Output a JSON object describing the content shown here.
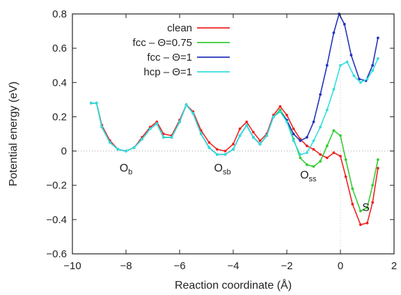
{
  "chart_data": {
    "type": "line",
    "title": "",
    "xlabel": "Reaction coordinate (Å)",
    "ylabel": "Potential energy (eV)",
    "xlim": [
      -10,
      2
    ],
    "ylim": [
      -0.6,
      0.8
    ],
    "xticks": [
      "−10",
      "−8",
      "−6",
      "−4",
      "−2",
      "0",
      "2"
    ],
    "yticks": [
      "−0.6",
      "−0.4",
      "−0.2",
      "0",
      "0.2",
      "0.4",
      "0.6",
      "0.8"
    ],
    "grid": false,
    "legend_position": "top-right",
    "series": [
      {
        "name": "clean",
        "color": "#ee2222",
        "points": [
          [
            -9.3,
            0.28
          ],
          [
            -9.1,
            0.28
          ],
          [
            -8.9,
            0.15
          ],
          [
            -8.6,
            0.06
          ],
          [
            -8.3,
            0.01
          ],
          [
            -8.0,
            0.0
          ],
          [
            -7.7,
            0.02
          ],
          [
            -7.4,
            0.08
          ],
          [
            -7.1,
            0.14
          ],
          [
            -6.85,
            0.17
          ],
          [
            -6.6,
            0.1
          ],
          [
            -6.3,
            0.09
          ],
          [
            -6.0,
            0.18
          ],
          [
            -5.75,
            0.27
          ],
          [
            -5.5,
            0.23
          ],
          [
            -5.2,
            0.12
          ],
          [
            -4.9,
            0.05
          ],
          [
            -4.6,
            0.01
          ],
          [
            -4.3,
            0.0
          ],
          [
            -4.0,
            0.04
          ],
          [
            -3.75,
            0.13
          ],
          [
            -3.5,
            0.17
          ],
          [
            -3.25,
            0.11
          ],
          [
            -3.0,
            0.06
          ],
          [
            -2.75,
            0.1
          ],
          [
            -2.5,
            0.21
          ],
          [
            -2.25,
            0.26
          ],
          [
            -2.0,
            0.21
          ],
          [
            -1.75,
            0.13
          ],
          [
            -1.5,
            0.07
          ],
          [
            -1.25,
            0.03
          ],
          [
            -1.0,
            0.01
          ],
          [
            -0.75,
            -0.02
          ],
          [
            -0.5,
            -0.04
          ],
          [
            -0.25,
            -0.01
          ],
          [
            0.0,
            -0.03
          ],
          [
            0.2,
            -0.15
          ],
          [
            0.45,
            -0.31
          ],
          [
            0.75,
            -0.43
          ],
          [
            1.0,
            -0.42
          ],
          [
            1.2,
            -0.3
          ],
          [
            1.4,
            -0.1
          ]
        ]
      },
      {
        "name": "fcc – Θ=0.75",
        "color": "#33cc33",
        "points": [
          [
            -9.3,
            0.28
          ],
          [
            -9.1,
            0.28
          ],
          [
            -8.9,
            0.14
          ],
          [
            -8.6,
            0.05
          ],
          [
            -8.3,
            0.01
          ],
          [
            -8.0,
            0.0
          ],
          [
            -7.7,
            0.02
          ],
          [
            -7.4,
            0.07
          ],
          [
            -7.1,
            0.13
          ],
          [
            -6.85,
            0.16
          ],
          [
            -6.6,
            0.08
          ],
          [
            -6.3,
            0.08
          ],
          [
            -6.0,
            0.17
          ],
          [
            -5.75,
            0.27
          ],
          [
            -5.5,
            0.22
          ],
          [
            -5.2,
            0.1
          ],
          [
            -4.9,
            0.02
          ],
          [
            -4.6,
            -0.02
          ],
          [
            -4.3,
            -0.02
          ],
          [
            -4.0,
            0.01
          ],
          [
            -3.75,
            0.09
          ],
          [
            -3.5,
            0.15
          ],
          [
            -3.25,
            0.08
          ],
          [
            -3.0,
            0.04
          ],
          [
            -2.75,
            0.09
          ],
          [
            -2.5,
            0.2
          ],
          [
            -2.25,
            0.24
          ],
          [
            -2.0,
            0.18
          ],
          [
            -1.75,
            0.07
          ],
          [
            -1.5,
            -0.04
          ],
          [
            -1.25,
            -0.08
          ],
          [
            -1.0,
            -0.09
          ],
          [
            -0.75,
            -0.06
          ],
          [
            -0.5,
            0.03
          ],
          [
            -0.25,
            0.12
          ],
          [
            0.0,
            0.09
          ],
          [
            0.2,
            -0.05
          ],
          [
            0.45,
            -0.22
          ],
          [
            0.75,
            -0.35
          ],
          [
            1.0,
            -0.33
          ],
          [
            1.2,
            -0.2
          ],
          [
            1.4,
            -0.05
          ]
        ]
      },
      {
        "name": "fcc – Θ=1",
        "color": "#2233bb",
        "points": [
          [
            -9.3,
            0.28
          ],
          [
            -9.1,
            0.28
          ],
          [
            -8.9,
            0.14
          ],
          [
            -8.6,
            0.05
          ],
          [
            -8.3,
            0.01
          ],
          [
            -8.0,
            0.0
          ],
          [
            -7.7,
            0.02
          ],
          [
            -7.4,
            0.07
          ],
          [
            -7.1,
            0.13
          ],
          [
            -6.85,
            0.16
          ],
          [
            -6.6,
            0.08
          ],
          [
            -6.3,
            0.08
          ],
          [
            -6.0,
            0.17
          ],
          [
            -5.75,
            0.27
          ],
          [
            -5.5,
            0.22
          ],
          [
            -5.2,
            0.1
          ],
          [
            -4.9,
            0.02
          ],
          [
            -4.6,
            -0.02
          ],
          [
            -4.3,
            -0.02
          ],
          [
            -4.0,
            0.01
          ],
          [
            -3.75,
            0.09
          ],
          [
            -3.5,
            0.15
          ],
          [
            -3.25,
            0.08
          ],
          [
            -3.0,
            0.04
          ],
          [
            -2.75,
            0.09
          ],
          [
            -2.5,
            0.2
          ],
          [
            -2.25,
            0.23
          ],
          [
            -2.0,
            0.18
          ],
          [
            -1.75,
            0.1
          ],
          [
            -1.5,
            0.06
          ],
          [
            -1.25,
            0.08
          ],
          [
            -1.0,
            0.17
          ],
          [
            -0.75,
            0.33
          ],
          [
            -0.5,
            0.5
          ],
          [
            -0.25,
            0.69
          ],
          [
            -0.05,
            0.8
          ],
          [
            0.15,
            0.74
          ],
          [
            0.4,
            0.56
          ],
          [
            0.7,
            0.42
          ],
          [
            0.95,
            0.41
          ],
          [
            1.2,
            0.5
          ],
          [
            1.4,
            0.66
          ]
        ]
      },
      {
        "name": "hcp – Θ=1",
        "color": "#33dddd",
        "points": [
          [
            -9.3,
            0.28
          ],
          [
            -9.1,
            0.28
          ],
          [
            -8.9,
            0.14
          ],
          [
            -8.6,
            0.05
          ],
          [
            -8.3,
            0.01
          ],
          [
            -8.0,
            0.0
          ],
          [
            -7.7,
            0.02
          ],
          [
            -7.4,
            0.07
          ],
          [
            -7.1,
            0.13
          ],
          [
            -6.85,
            0.16
          ],
          [
            -6.6,
            0.08
          ],
          [
            -6.3,
            0.08
          ],
          [
            -6.0,
            0.17
          ],
          [
            -5.75,
            0.27
          ],
          [
            -5.5,
            0.22
          ],
          [
            -5.2,
            0.1
          ],
          [
            -4.9,
            0.02
          ],
          [
            -4.6,
            -0.02
          ],
          [
            -4.3,
            -0.02
          ],
          [
            -4.0,
            0.01
          ],
          [
            -3.75,
            0.09
          ],
          [
            -3.5,
            0.15
          ],
          [
            -3.25,
            0.08
          ],
          [
            -3.0,
            0.04
          ],
          [
            -2.75,
            0.09
          ],
          [
            -2.5,
            0.2
          ],
          [
            -2.25,
            0.23
          ],
          [
            -2.0,
            0.17
          ],
          [
            -1.75,
            0.06
          ],
          [
            -1.5,
            -0.02
          ],
          [
            -1.25,
            -0.01
          ],
          [
            -1.0,
            0.06
          ],
          [
            -0.75,
            0.14
          ],
          [
            -0.5,
            0.24
          ],
          [
            -0.25,
            0.36
          ],
          [
            0.0,
            0.5
          ],
          [
            0.25,
            0.52
          ],
          [
            0.5,
            0.44
          ],
          [
            0.75,
            0.4
          ],
          [
            1.0,
            0.42
          ],
          [
            1.2,
            0.47
          ],
          [
            1.4,
            0.54
          ]
        ]
      }
    ],
    "annotations": [
      {
        "base": "O",
        "sub": "b",
        "x": -8.0,
        "y": -0.1
      },
      {
        "base": "O",
        "sub": "sb",
        "x": -4.4,
        "y": -0.1
      },
      {
        "base": "O",
        "sub": "ss",
        "x": -1.2,
        "y": -0.14
      },
      {
        "base": "S",
        "sub": "",
        "x": 0.95,
        "y": -0.33
      }
    ]
  }
}
